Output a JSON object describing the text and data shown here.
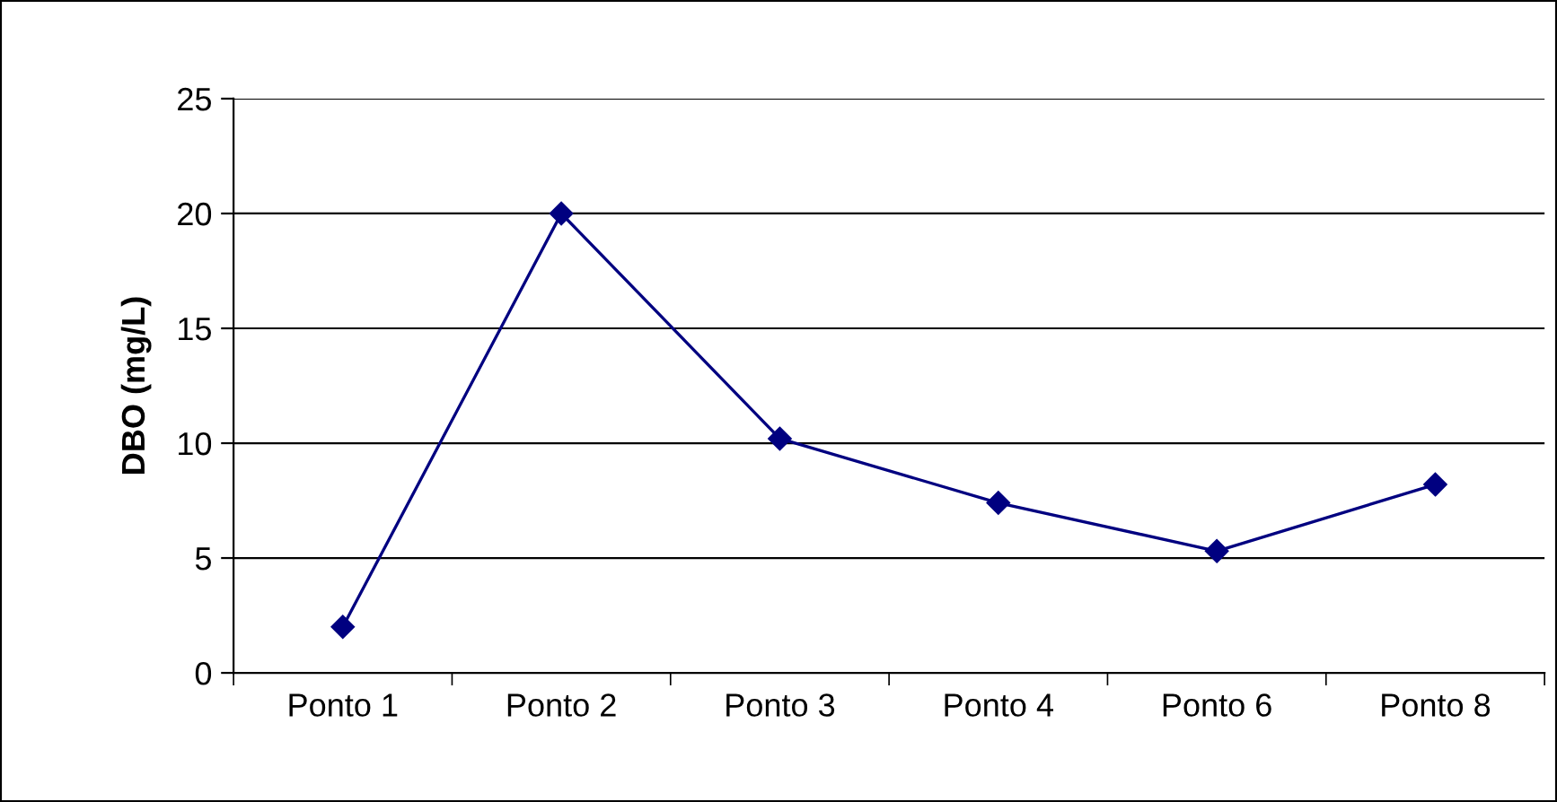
{
  "chart_data": {
    "type": "line",
    "ylabel": "DBO (mg/L)",
    "categories": [
      "Ponto 1",
      "Ponto 2",
      "Ponto 3",
      "Ponto 4",
      "Ponto 6",
      "Ponto 8"
    ],
    "series": [
      {
        "color": "#000080",
        "values": [
          2,
          20,
          10.2,
          7.4,
          5.3,
          8.2
        ]
      }
    ],
    "ylim": [
      0,
      25
    ],
    "yticks": [
      0,
      5,
      10,
      15,
      20,
      25
    ],
    "grid": "y",
    "marker": "diamond",
    "line_style": "solid",
    "legend": false
  }
}
